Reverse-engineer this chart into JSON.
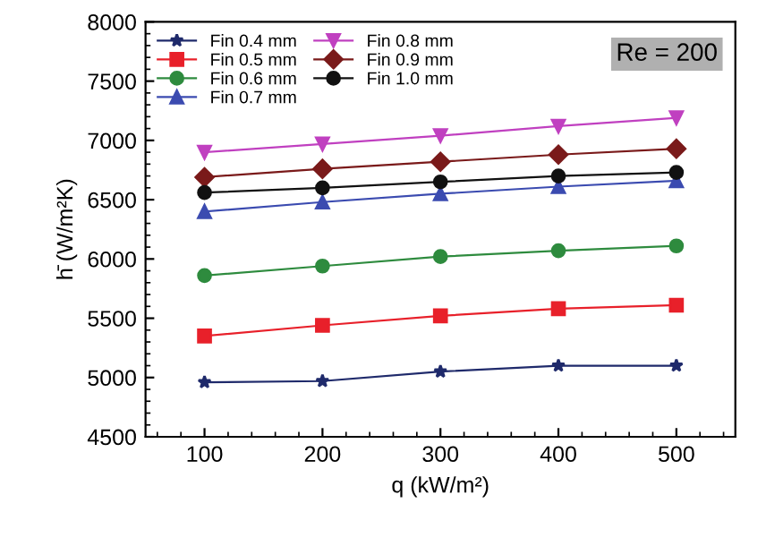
{
  "chart_data": {
    "type": "line",
    "xlabel": "q (kW/m²)",
    "ylabel": "h̄ (W/m²K)",
    "x": [
      100,
      200,
      300,
      400,
      500
    ],
    "series": [
      {
        "name": "Fin 0.4 mm",
        "color": "#1f2a6b",
        "marker": "star",
        "values": [
          4960,
          4970,
          5050,
          5100,
          5100
        ]
      },
      {
        "name": "Fin 0.5 mm",
        "color": "#e8202a",
        "marker": "square",
        "values": [
          5350,
          5440,
          5520,
          5580,
          5610
        ]
      },
      {
        "name": "Fin 0.6 mm",
        "color": "#2e8b3e",
        "marker": "circle",
        "values": [
          5860,
          5940,
          6020,
          6070,
          6110
        ]
      },
      {
        "name": "Fin 0.7 mm",
        "color": "#3b4bb0",
        "marker": "triangle",
        "values": [
          6400,
          6480,
          6550,
          6610,
          6660
        ]
      },
      {
        "name": "Fin 0.8 mm",
        "color": "#c040c0",
        "marker": "triangle_down",
        "values": [
          6900,
          6970,
          7040,
          7120,
          7190
        ]
      },
      {
        "name": "Fin 0.9 mm",
        "color": "#7a1a1a",
        "marker": "diamond",
        "values": [
          6690,
          6760,
          6820,
          6880,
          6930
        ]
      },
      {
        "name": "Fin 1.0 mm",
        "color": "#111111",
        "marker": "circle",
        "values": [
          6560,
          6600,
          6650,
          6700,
          6730
        ]
      }
    ],
    "xlim": [
      50,
      550
    ],
    "xticks": [
      100,
      200,
      300,
      400,
      500
    ],
    "ylim": [
      4500,
      8000
    ],
    "yticks": [
      4500,
      5000,
      5500,
      6000,
      6500,
      7000,
      7500,
      8000
    ],
    "grid": false,
    "legend": "top left",
    "line_style": "solid",
    "annotations": [
      "Re = 200"
    ]
  }
}
